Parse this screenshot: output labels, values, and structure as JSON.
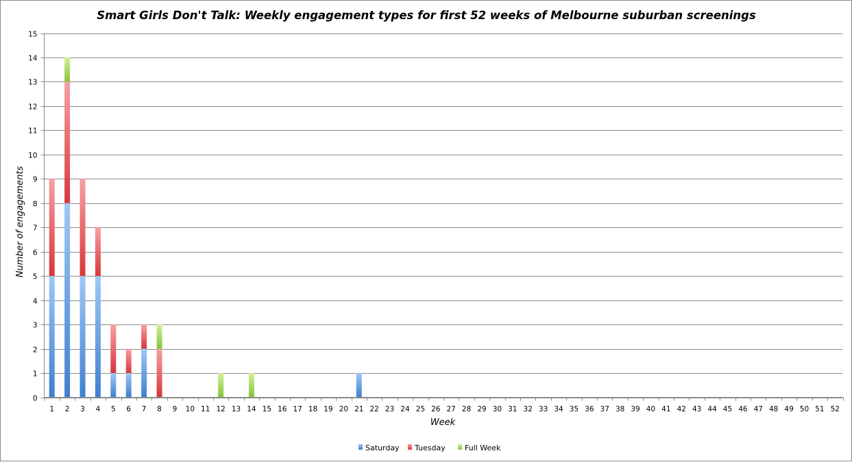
{
  "chart_data": {
    "type": "bar",
    "stacked": true,
    "title": "Smart Girls Don't Talk: Weekly engagement types for first 52 weeks of Melbourne suburban screenings",
    "xlabel": "Week",
    "ylabel": "Number of engagements",
    "ylim": [
      0,
      15
    ],
    "yticks": [
      "0",
      "1",
      "2",
      "3",
      "4",
      "5",
      "6",
      "7",
      "8",
      "9",
      "10",
      "11",
      "12",
      "13",
      "14",
      "15"
    ],
    "grid": true,
    "legend_position": "bottom",
    "categories": [
      "1",
      "2",
      "3",
      "4",
      "5",
      "6",
      "7",
      "8",
      "9",
      "10",
      "11",
      "12",
      "13",
      "14",
      "15",
      "16",
      "17",
      "18",
      "19",
      "20",
      "21",
      "22",
      "23",
      "24",
      "25",
      "26",
      "27",
      "28",
      "29",
      "30",
      "31",
      "32",
      "33",
      "34",
      "35",
      "36",
      "37",
      "38",
      "39",
      "40",
      "41",
      "42",
      "43",
      "44",
      "45",
      "46",
      "47",
      "48",
      "49",
      "50",
      "51",
      "52"
    ],
    "series": [
      {
        "name": "Saturday",
        "color_dark": "#3f7fd0",
        "color_light": "#9ec8f6",
        "values": [
          5,
          8,
          5,
          5,
          1,
          1,
          2,
          0,
          0,
          0,
          0,
          0,
          0,
          0,
          0,
          0,
          0,
          0,
          0,
          0,
          1,
          0,
          0,
          0,
          0,
          0,
          0,
          0,
          0,
          0,
          0,
          0,
          0,
          0,
          0,
          0,
          0,
          0,
          0,
          0,
          0,
          0,
          0,
          0,
          0,
          0,
          0,
          0,
          0,
          0,
          0,
          0
        ]
      },
      {
        "name": "Tuesday",
        "color_dark": "#d8363b",
        "color_light": "#f7a0a2",
        "values": [
          4,
          5,
          4,
          2,
          2,
          1,
          1,
          2,
          0,
          0,
          0,
          0,
          0,
          0,
          0,
          0,
          0,
          0,
          0,
          0,
          0,
          0,
          0,
          0,
          0,
          0,
          0,
          0,
          0,
          0,
          0,
          0,
          0,
          0,
          0,
          0,
          0,
          0,
          0,
          0,
          0,
          0,
          0,
          0,
          0,
          0,
          0,
          0,
          0,
          0,
          0,
          0
        ]
      },
      {
        "name": "Full Week",
        "color_dark": "#86c43c",
        "color_light": "#d3f09a",
        "values": [
          0,
          1,
          0,
          0,
          0,
          0,
          0,
          1,
          0,
          0,
          0,
          1,
          0,
          1,
          0,
          0,
          0,
          0,
          0,
          0,
          0,
          0,
          0,
          0,
          0,
          0,
          0,
          0,
          0,
          0,
          0,
          0,
          0,
          0,
          0,
          0,
          0,
          0,
          0,
          0,
          0,
          0,
          0,
          0,
          0,
          0,
          0,
          0,
          0,
          0,
          0,
          0
        ]
      }
    ]
  }
}
